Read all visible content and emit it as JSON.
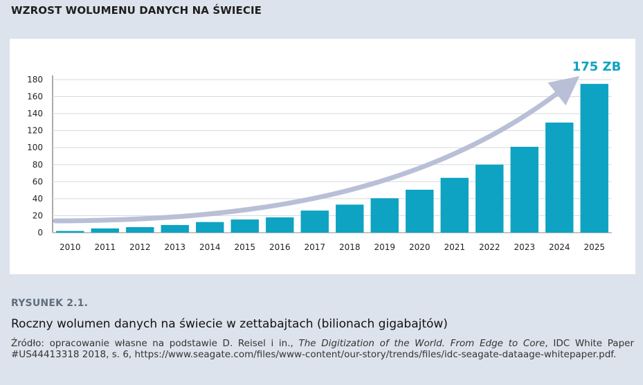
{
  "header": {
    "title": "WZROST WOLUMENU DANYCH NA ŚWIECIE"
  },
  "figure": {
    "label": "RYSUNEK 2.1.",
    "caption": "Roczny wolumen danych na świecie w zettabajtach (bilionach gigabajtów)",
    "source_prefix": "Źródło: opracowanie własne na podstawie D. Reisel i in., ",
    "source_title": "The Digitization of the World. From Edge to Core",
    "source_suffix": ", IDC White Paper #US44413318 2018, s. 6, https://www.seagate.com/files/www-content/our-story/trends/files/idc-seagate-dataage-whitepaper.pdf."
  },
  "chart_data": {
    "type": "bar",
    "categories": [
      "2010",
      "2011",
      "2012",
      "2013",
      "2014",
      "2015",
      "2016",
      "2017",
      "2018",
      "2019",
      "2020",
      "2021",
      "2022",
      "2023",
      "2024",
      "2025"
    ],
    "values": [
      2,
      5,
      6.5,
      9,
      12.5,
      15.5,
      18,
      26,
      33,
      40.5,
      50.5,
      64.5,
      80,
      101,
      129.5,
      175
    ],
    "yticks": [
      0,
      20,
      40,
      60,
      80,
      100,
      120,
      140,
      160,
      180
    ],
    "ylim": [
      0,
      180
    ],
    "annotation": "175 ZB",
    "grid": true,
    "colors": {
      "bar": "#0ea3c2",
      "arrow": "#b9bfd6",
      "annotation": "#0ea3c2",
      "grid": "#d6d9de"
    }
  }
}
